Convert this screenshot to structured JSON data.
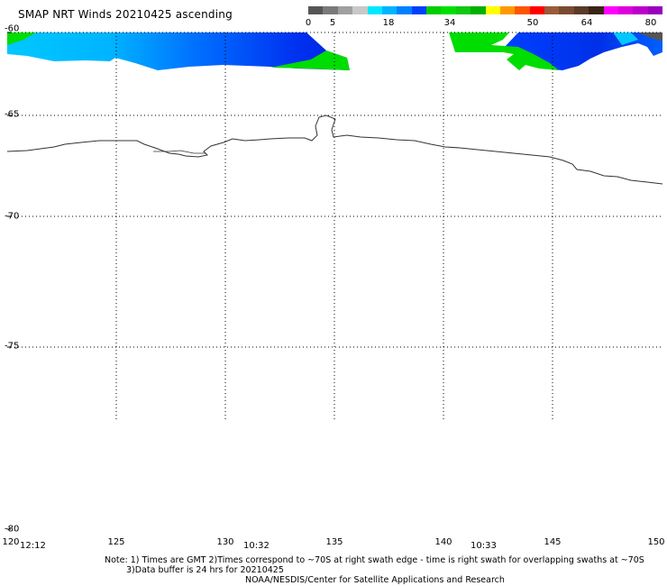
{
  "title": "SMAP NRT Winds 20210425 ascending",
  "colorbar": {
    "segments": [
      {
        "color": "#555555"
      },
      {
        "color": "#7a7a7a"
      },
      {
        "color": "#a0a0a0"
      },
      {
        "color": "#c8c8c8"
      },
      {
        "color": "#00e8ff"
      },
      {
        "color": "#00b4ff"
      },
      {
        "color": "#0080ff"
      },
      {
        "color": "#0040ff"
      },
      {
        "color": "#00cc00"
      },
      {
        "color": "#00e000"
      },
      {
        "color": "#10c810"
      },
      {
        "color": "#00b000"
      },
      {
        "color": "#ffff00"
      },
      {
        "color": "#ff9900"
      },
      {
        "color": "#ff5500"
      },
      {
        "color": "#ff0000"
      },
      {
        "color": "#9b5a3c"
      },
      {
        "color": "#7a4a30"
      },
      {
        "color": "#5a3a28"
      },
      {
        "color": "#3a2418"
      },
      {
        "color": "#ff00ff"
      },
      {
        "color": "#dd00dd"
      },
      {
        "color": "#bb00cc"
      },
      {
        "color": "#9900bb"
      }
    ],
    "labels": [
      "0",
      "5",
      "18",
      "34",
      "50",
      "64",
      "80"
    ]
  },
  "latitudes": [
    "-60",
    "-65",
    "-70",
    "-75",
    "-80"
  ],
  "longitudes": [
    "120",
    "125",
    "130",
    "135",
    "140",
    "145",
    "150"
  ],
  "times": [
    "12:12",
    "10:32",
    "10:33"
  ],
  "notes": {
    "line1": "Note: 1) Times are GMT 2)Times correspond to ~70S at right swath edge - time is right swath for overlapping swaths at ~70S",
    "line2": "3)Data buffer is 24 hrs for 20210425",
    "line3": "NOAA/NESDIS/Center for Satellite Applications and Research"
  }
}
